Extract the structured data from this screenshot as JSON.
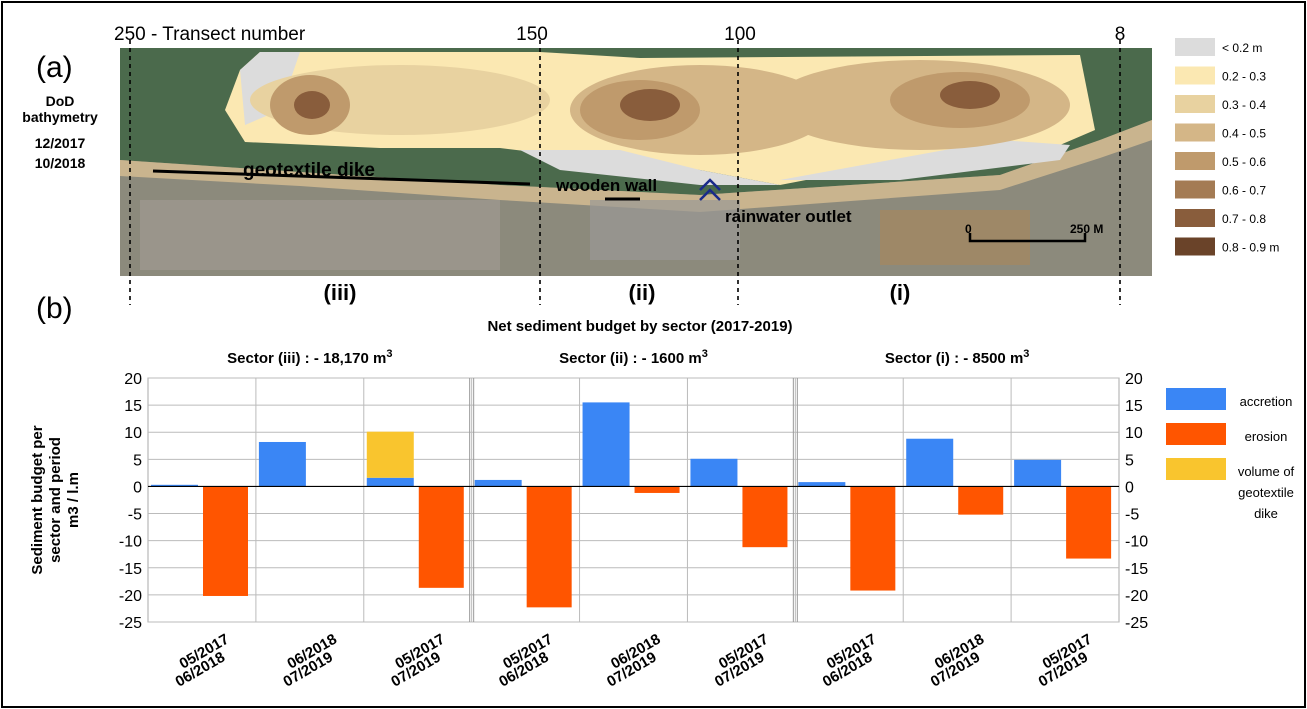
{
  "panel_a": {
    "label": "(a)",
    "transect_label": "250 - Transect number",
    "transects": [
      "150",
      "100",
      "8"
    ],
    "title": [
      "DoD",
      "bathymetry"
    ],
    "dates": [
      "12/2017",
      "10/2018"
    ],
    "annotations": {
      "dike": "geotextile dike",
      "wall": "wooden wall",
      "outlet": "rainwater outlet"
    },
    "scale": [
      "0",
      "250 M"
    ],
    "sectors": [
      "(iii)",
      "(ii)",
      "(i)"
    ],
    "legend": [
      {
        "label": "< 0.2 m",
        "color": "#dcdcdc"
      },
      {
        "label": "0.2 - 0.3",
        "color": "#fbe8b2"
      },
      {
        "label": "0.3 - 0.4",
        "color": "#e8d2a0"
      },
      {
        "label": "0.4 - 0.5",
        "color": "#d4b687"
      },
      {
        "label": "0.5 - 0.6",
        "color": "#bf9a6c"
      },
      {
        "label": "0.6 - 0.7",
        "color": "#a47b54"
      },
      {
        "label": "0.7 - 0.8",
        "color": "#895d3c"
      },
      {
        "label": "0.8 - 0.9 m",
        "color": "#6a4329"
      }
    ]
  },
  "chart_data": {
    "type": "bar",
    "panel_label": "(b)",
    "title": "Net sediment budget by sector (2017-2019)",
    "y_label": [
      "Sediment budget per",
      "sector and period",
      "m3 / l.m"
    ],
    "groups": [
      {
        "title": "Sector (iii) :  - 18,170 m",
        "exponent": "3"
      },
      {
        "title": "Sector (ii) :  - 1600 m",
        "exponent": "3"
      },
      {
        "title": "Sector (i) : - 8500 m",
        "exponent": "3"
      }
    ],
    "categories": [
      [
        "05/2017",
        "06/2018"
      ],
      [
        "06/2018",
        "07/2019"
      ],
      [
        "05/2017",
        "07/2019"
      ],
      [
        "05/2017",
        "06/2018"
      ],
      [
        "06/2018",
        "07/2019"
      ],
      [
        "05/2017",
        "07/2019"
      ],
      [
        "05/2017",
        "06/2018"
      ],
      [
        "06/2018",
        "07/2019"
      ],
      [
        "05/2017",
        "07/2019"
      ]
    ],
    "series": [
      {
        "name": "accretion",
        "color": "#3a86f5",
        "values": [
          0.3,
          8.2,
          1.6,
          1.2,
          15.5,
          5.1,
          0.8,
          8.8,
          4.9
        ]
      },
      {
        "name": "erosion",
        "color": "#ff5500",
        "values": [
          -20.2,
          null,
          -18.7,
          -22.3,
          -1.2,
          -11.2,
          -19.2,
          -5.2,
          -13.3
        ]
      },
      {
        "name": "volume of geotextile dike",
        "color": "#f9c52e",
        "stack_on": "accretion",
        "values": [
          null,
          null,
          8.5,
          null,
          null,
          null,
          null,
          null,
          null
        ]
      }
    ],
    "ylim": [
      -25,
      20
    ],
    "yticks": [
      -25,
      -20,
      -15,
      -10,
      -5,
      0,
      5,
      10,
      15,
      20
    ],
    "grid": true
  }
}
